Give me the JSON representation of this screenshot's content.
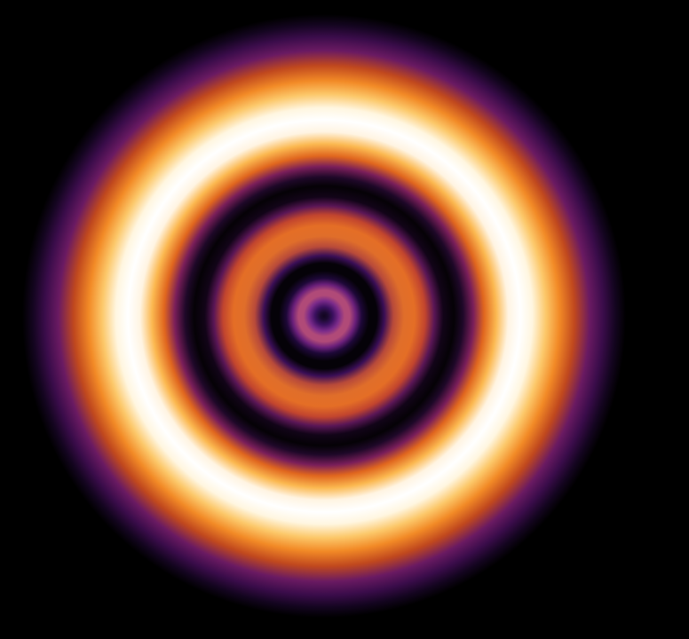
{
  "image": {
    "subject": "concentric-ring-intensity-pattern",
    "background_color": "#000000",
    "colormap": [
      "#000004",
      "#1b0c41",
      "#4a0c6b",
      "#781c6d",
      "#a52c60",
      "#cf4446",
      "#ed6925",
      "#fb9b06",
      "#f7d13d",
      "#fcffa4",
      "#ffffff"
    ],
    "rings": [
      {
        "name": "center-dot",
        "level": 0.05
      },
      {
        "name": "inner-ring-1",
        "level": 0.45
      },
      {
        "name": "dark-band-1",
        "level": 0.0
      },
      {
        "name": "inner-ring-2",
        "level": 0.62
      },
      {
        "name": "dark-band-2",
        "level": 0.0
      },
      {
        "name": "bright-outer-ring",
        "level": 1.0
      },
      {
        "name": "outer-halo",
        "level": 0.35
      }
    ]
  }
}
